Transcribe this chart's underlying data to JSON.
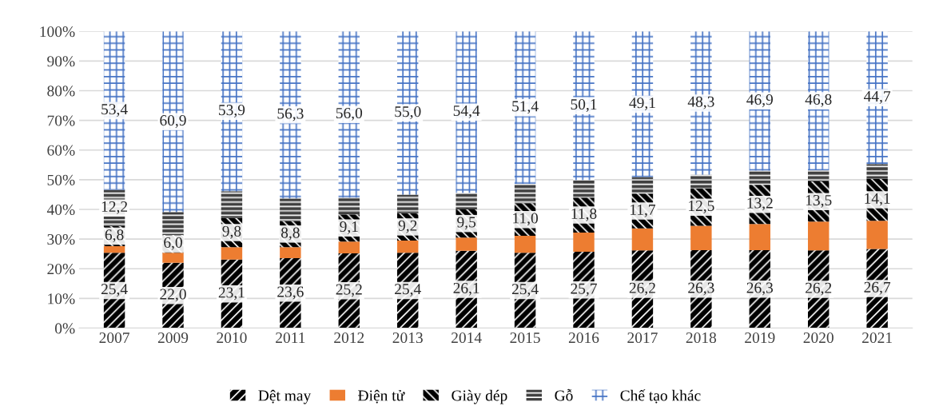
{
  "chart_data": {
    "type": "bar",
    "stacked": true,
    "categories": [
      "2007",
      "2009",
      "2010",
      "2011",
      "2012",
      "2013",
      "2014",
      "2015",
      "2016",
      "2017",
      "2018",
      "2019",
      "2020",
      "2021"
    ],
    "series": [
      {
        "name": "Dệt may",
        "color": "#000000",
        "values": [
          25.4,
          22.0,
          23.1,
          23.6,
          25.2,
          25.4,
          26.1,
          25.4,
          25.7,
          26.2,
          26.3,
          26.3,
          26.2,
          26.7
        ],
        "value_labels": [
          "25,4",
          "22,0",
          "23,1",
          "23,6",
          "25,2",
          "25,4",
          "26,1",
          "25,4",
          "25,7",
          "26,2",
          "26,3",
          "26,3",
          "26,2",
          "26,7"
        ]
      },
      {
        "name": "Điện tử",
        "color": "#ed7d31",
        "values": [
          2.2,
          3.4,
          4.2,
          3.7,
          4.0,
          4.1,
          4.4,
          5.7,
          6.5,
          7.4,
          8.2,
          8.8,
          9.7,
          9.5
        ]
      },
      {
        "name": "Giày dép",
        "color": "#000000",
        "values": [
          6.8,
          6.0,
          9.8,
          8.8,
          9.1,
          9.2,
          9.5,
          11.0,
          11.8,
          11.7,
          12.5,
          13.2,
          13.5,
          14.1
        ],
        "value_labels": [
          "6,8",
          "6,0",
          "9,8",
          "8,8",
          "9,1",
          "9,2",
          "9,5",
          "11,0",
          "11,8",
          "11,7",
          "12,5",
          "13,2",
          "13,5",
          "14,1"
        ]
      },
      {
        "name": "Gỗ",
        "color": "#404040",
        "values": [
          12.2,
          7.7,
          9.0,
          7.6,
          5.7,
          6.3,
          5.6,
          6.5,
          5.9,
          5.6,
          4.7,
          4.8,
          3.8,
          5.0
        ],
        "value_labels": [
          "12,2",
          null,
          null,
          null,
          null,
          null,
          null,
          null,
          null,
          null,
          null,
          null,
          null,
          null
        ]
      },
      {
        "name": "Chế tạo khác",
        "color": "#4472c4",
        "values": [
          53.4,
          60.9,
          53.9,
          56.3,
          56.0,
          55.0,
          54.4,
          51.4,
          50.1,
          49.1,
          48.3,
          46.9,
          46.8,
          44.7
        ],
        "value_labels": [
          "53,4",
          "60,9",
          "53,9",
          "56,3",
          "56,0",
          "55,0",
          "54,4",
          "51,4",
          "50,1",
          "49,1",
          "48,3",
          "46,9",
          "46,8",
          "44,7"
        ]
      }
    ],
    "ylim": [
      0,
      100
    ],
    "yticks": [
      {
        "value": 0,
        "label": "0%"
      },
      {
        "value": 10,
        "label": "10%"
      },
      {
        "value": 20,
        "label": "20%"
      },
      {
        "value": 30,
        "label": "30%"
      },
      {
        "value": 40,
        "label": "40%"
      },
      {
        "value": 50,
        "label": "50%"
      },
      {
        "value": 60,
        "label": "60%"
      },
      {
        "value": 70,
        "label": "70%"
      },
      {
        "value": 80,
        "label": "80%"
      },
      {
        "value": 90,
        "label": "90%"
      },
      {
        "value": 100,
        "label": "100%"
      }
    ],
    "grid": "y",
    "legend": "bottom"
  }
}
